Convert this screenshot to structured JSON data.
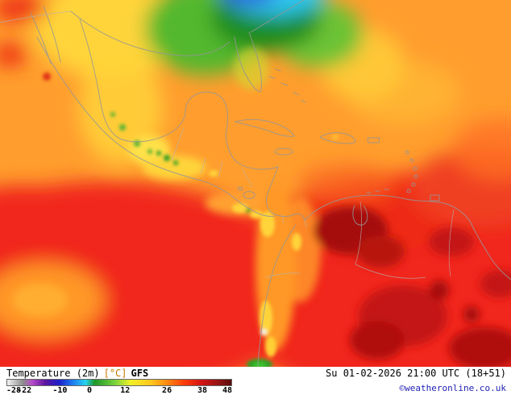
{
  "legend": {
    "title": "Temperature (2m)",
    "unit": "[°C]",
    "model": "GFS",
    "scale_labels": [
      "-28",
      "-22",
      "-10",
      "0",
      "12",
      "26",
      "38",
      "48"
    ],
    "scale_label_positions": [
      0,
      7.9,
      23.7,
      36.8,
      52.6,
      71.1,
      86.8,
      100
    ],
    "scale_gradient": [
      {
        "color": "#f2f2f2",
        "pos": 0
      },
      {
        "color": "#8c8c8c",
        "pos": 7
      },
      {
        "color": "#b84cc8",
        "pos": 11
      },
      {
        "color": "#5c14a0",
        "pos": 17
      },
      {
        "color": "#1e1ec8",
        "pos": 23
      },
      {
        "color": "#1e78f0",
        "pos": 29
      },
      {
        "color": "#28d2f0",
        "pos": 35
      },
      {
        "color": "#1e9628",
        "pos": 39
      },
      {
        "color": "#78d23c",
        "pos": 48
      },
      {
        "color": "#f0f028",
        "pos": 55
      },
      {
        "color": "#ffc81e",
        "pos": 64
      },
      {
        "color": "#ff8c14",
        "pos": 71
      },
      {
        "color": "#ff3c0a",
        "pos": 79
      },
      {
        "color": "#d21414",
        "pos": 87
      },
      {
        "color": "#961414",
        "pos": 94
      },
      {
        "color": "#5a0a0a",
        "pos": 100
      }
    ]
  },
  "footer": {
    "datetime": "Su 01-02-2026 21:00 UTC (18+51)",
    "copyright": "©weatheronline.co.uk"
  }
}
